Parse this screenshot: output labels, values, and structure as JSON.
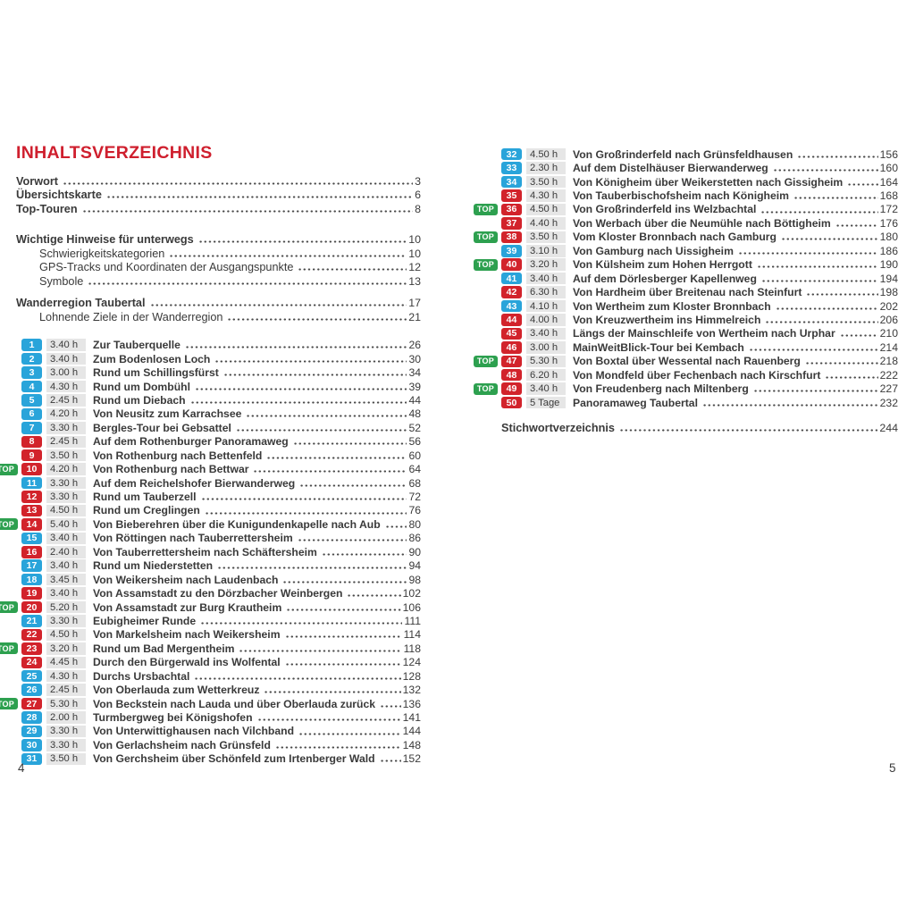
{
  "page": {
    "title": "INHALTSVERZEICHNIS",
    "left_folio": "4",
    "right_folio": "5"
  },
  "colors": {
    "accent_red": "#cf1f2e",
    "badge_blue": "#29a4da",
    "badge_red": "#d2232b",
    "top_green": "#2da04f",
    "duration_bg": "#e6e6e6",
    "text": "#3a3a3a"
  },
  "badges": {
    "top_label": "TOP"
  },
  "front_matter_groups": [
    {
      "entries": [
        {
          "label": "Vorwort",
          "page": "3",
          "bold": true
        },
        {
          "label": "Übersichtskarte",
          "page": "6",
          "bold": true
        },
        {
          "label": "Top-Touren",
          "page": "8",
          "bold": true
        }
      ]
    },
    {
      "entries": [
        {
          "label": "Wichtige Hinweise für unterwegs",
          "page": "10",
          "bold": true
        },
        {
          "label": "Schwierigkeitskategorien",
          "page": "10",
          "indent": true
        },
        {
          "label": "GPS-Tracks und Koordinaten der Ausgangspunkte",
          "page": "12",
          "indent": true
        },
        {
          "label": "Symbole",
          "page": "13",
          "indent": true
        }
      ]
    },
    {
      "entries": [
        {
          "label": "Wanderregion Taubertal",
          "page": "17",
          "bold": true
        },
        {
          "label": "Lohnende Ziele in der Wanderregion",
          "page": "21",
          "indent": true
        }
      ]
    }
  ],
  "tours_left": [
    {
      "num": "1",
      "color": "blue",
      "top": false,
      "duration": "3.40 h",
      "title": "Zur Tauberquelle",
      "page": "26"
    },
    {
      "num": "2",
      "color": "blue",
      "top": false,
      "duration": "3.40 h",
      "title": "Zum Bodenlosen Loch",
      "page": "30"
    },
    {
      "num": "3",
      "color": "blue",
      "top": false,
      "duration": "3.00 h",
      "title": "Rund um Schillingsfürst",
      "page": "34"
    },
    {
      "num": "4",
      "color": "blue",
      "top": false,
      "duration": "4.30 h",
      "title": "Rund um Dombühl",
      "page": "39"
    },
    {
      "num": "5",
      "color": "blue",
      "top": false,
      "duration": "2.45 h",
      "title": "Rund um Diebach",
      "page": "44"
    },
    {
      "num": "6",
      "color": "blue",
      "top": false,
      "duration": "4.20 h",
      "title": "Von Neusitz zum Karrachsee",
      "page": "48"
    },
    {
      "num": "7",
      "color": "blue",
      "top": false,
      "duration": "3.30 h",
      "title": "Bergles-Tour bei Gebsattel",
      "page": "52"
    },
    {
      "num": "8",
      "color": "red",
      "top": false,
      "duration": "2.45 h",
      "title": "Auf dem Rothenburger Panoramaweg",
      "page": "56"
    },
    {
      "num": "9",
      "color": "red",
      "top": false,
      "duration": "3.50 h",
      "title": "Von Rothenburg nach Bettenfeld",
      "page": "60"
    },
    {
      "num": "10",
      "color": "red",
      "top": true,
      "duration": "4.20 h",
      "title": "Von Rothenburg nach Bettwar",
      "page": "64"
    },
    {
      "num": "11",
      "color": "blue",
      "top": false,
      "duration": "3.30 h",
      "title": "Auf dem Reichelshofer Bierwanderweg",
      "page": "68"
    },
    {
      "num": "12",
      "color": "red",
      "top": false,
      "duration": "3.30 h",
      "title": "Rund um Tauberzell",
      "page": "72"
    },
    {
      "num": "13",
      "color": "red",
      "top": false,
      "duration": "4.50 h",
      "title": "Rund um Creglingen",
      "page": "76"
    },
    {
      "num": "14",
      "color": "red",
      "top": true,
      "duration": "5.40 h",
      "title": "Von Bieberehren über die Kunigundenkapelle nach Aub",
      "page": "80"
    },
    {
      "num": "15",
      "color": "blue",
      "top": false,
      "duration": "3.40 h",
      "title": "Von Röttingen nach Tauberrettersheim",
      "page": "86"
    },
    {
      "num": "16",
      "color": "red",
      "top": false,
      "duration": "2.40 h",
      "title": "Von Tauberrettersheim nach Schäftersheim",
      "page": "90"
    },
    {
      "num": "17",
      "color": "blue",
      "top": false,
      "duration": "3.40 h",
      "title": "Rund um Niederstetten",
      "page": "94"
    },
    {
      "num": "18",
      "color": "blue",
      "top": false,
      "duration": "3.45 h",
      "title": "Von Weikersheim nach Laudenbach",
      "page": "98"
    },
    {
      "num": "19",
      "color": "red",
      "top": false,
      "duration": "3.40 h",
      "title": "Von Assamstadt zu den Dörzbacher Weinbergen",
      "page": "102"
    },
    {
      "num": "20",
      "color": "red",
      "top": true,
      "duration": "5.20 h",
      "title": "Von Assamstadt zur Burg Krautheim",
      "page": "106"
    },
    {
      "num": "21",
      "color": "blue",
      "top": false,
      "duration": "3.30 h",
      "title": "Eubigheimer Runde",
      "page": "111"
    },
    {
      "num": "22",
      "color": "red",
      "top": false,
      "duration": "4.50 h",
      "title": "Von Markelsheim nach Weikersheim",
      "page": "114"
    },
    {
      "num": "23",
      "color": "red",
      "top": true,
      "duration": "3.20 h",
      "title": "Rund um Bad Mergentheim",
      "page": "118"
    },
    {
      "num": "24",
      "color": "red",
      "top": false,
      "duration": "4.45 h",
      "title": "Durch den Bürgerwald ins Wolfental",
      "page": "124"
    },
    {
      "num": "25",
      "color": "blue",
      "top": false,
      "duration": "4.30 h",
      "title": "Durchs Ursbachtal",
      "page": "128"
    },
    {
      "num": "26",
      "color": "blue",
      "top": false,
      "duration": "2.45 h",
      "title": "Von Oberlauda zum Wetterkreuz",
      "page": "132"
    },
    {
      "num": "27",
      "color": "red",
      "top": true,
      "duration": "5.30 h",
      "title": "Von Beckstein nach Lauda und über Oberlauda zurück",
      "page": "136"
    },
    {
      "num": "28",
      "color": "blue",
      "top": false,
      "duration": "2.00 h",
      "title": "Turmbergweg bei Königshofen",
      "page": "141"
    },
    {
      "num": "29",
      "color": "blue",
      "top": false,
      "duration": "3.30 h",
      "title": "Von Unterwittighausen nach Vilchband",
      "page": "144"
    },
    {
      "num": "30",
      "color": "blue",
      "top": false,
      "duration": "3.30 h",
      "title": "Von Gerlachsheim nach Grünsfeld",
      "page": "148"
    },
    {
      "num": "31",
      "color": "blue",
      "top": false,
      "duration": "3.50 h",
      "title": "Von Gerchsheim über Schönfeld zum Irtenberger Wald",
      "page": "152"
    }
  ],
  "tours_right": [
    {
      "num": "32",
      "color": "blue",
      "top": false,
      "duration": "4.50 h",
      "title": "Von Großrinderfeld nach Grünsfeldhausen",
      "page": "156"
    },
    {
      "num": "33",
      "color": "blue",
      "top": false,
      "duration": "2.30 h",
      "title": "Auf dem Distelhäuser Bierwanderweg",
      "page": "160"
    },
    {
      "num": "34",
      "color": "blue",
      "top": false,
      "duration": "3.50 h",
      "title": "Von Königheim über Weikerstetten nach Gissigheim",
      "page": "164"
    },
    {
      "num": "35",
      "color": "red",
      "top": false,
      "duration": "4.30 h",
      "title": "Von Tauberbischofsheim nach Königheim",
      "page": "168"
    },
    {
      "num": "36",
      "color": "red",
      "top": true,
      "duration": "4.50 h",
      "title": "Von Großrinderfeld ins Welzbachtal",
      "page": "172"
    },
    {
      "num": "37",
      "color": "red",
      "top": false,
      "duration": "4.40 h",
      "title": "Von Werbach über die Neumühle nach Böttigheim",
      "page": "176"
    },
    {
      "num": "38",
      "color": "red",
      "top": true,
      "duration": "3.50 h",
      "title": "Vom Kloster Bronnbach nach Gamburg",
      "page": "180"
    },
    {
      "num": "39",
      "color": "blue",
      "top": false,
      "duration": "3.10 h",
      "title": "Von Gamburg nach Uissigheim",
      "page": "186"
    },
    {
      "num": "40",
      "color": "red",
      "top": true,
      "duration": "3.20 h",
      "title": "Von Külsheim zum Hohen Herrgott",
      "page": "190"
    },
    {
      "num": "41",
      "color": "blue",
      "top": false,
      "duration": "3.40 h",
      "title": "Auf dem Dörlesberger Kapellenweg",
      "page": "194"
    },
    {
      "num": "42",
      "color": "red",
      "top": false,
      "duration": "6.30 h",
      "title": "Von Hardheim über Breitenau nach Steinfurt",
      "page": "198"
    },
    {
      "num": "43",
      "color": "blue",
      "top": false,
      "duration": "4.10 h",
      "title": "Von Wertheim zum Kloster Bronnbach",
      "page": "202"
    },
    {
      "num": "44",
      "color": "red",
      "top": false,
      "duration": "4.00 h",
      "title": "Von Kreuzwertheim ins Himmelreich",
      "page": "206"
    },
    {
      "num": "45",
      "color": "red",
      "top": false,
      "duration": "3.40 h",
      "title": "Längs der Mainschleife von Wertheim nach Urphar",
      "page": "210"
    },
    {
      "num": "46",
      "color": "red",
      "top": false,
      "duration": "3.00 h",
      "title": "MainWeitBlick-Tour bei Kembach",
      "page": "214"
    },
    {
      "num": "47",
      "color": "red",
      "top": true,
      "duration": "5.30 h",
      "title": "Von Boxtal über Wessental nach Rauenberg",
      "page": "218"
    },
    {
      "num": "48",
      "color": "red",
      "top": false,
      "duration": "6.20 h",
      "title": "Von Mondfeld über Fechenbach nach Kirschfurt",
      "page": "222"
    },
    {
      "num": "49",
      "color": "red",
      "top": true,
      "duration": "3.40 h",
      "title": "Von Freudenberg nach Miltenberg",
      "page": "227"
    },
    {
      "num": "50",
      "color": "red",
      "top": false,
      "duration": "5 Tage",
      "title": "Panoramaweg Taubertal",
      "page": "232"
    }
  ],
  "index_entry": {
    "label": "Stichwortverzeichnis",
    "page": "244"
  }
}
